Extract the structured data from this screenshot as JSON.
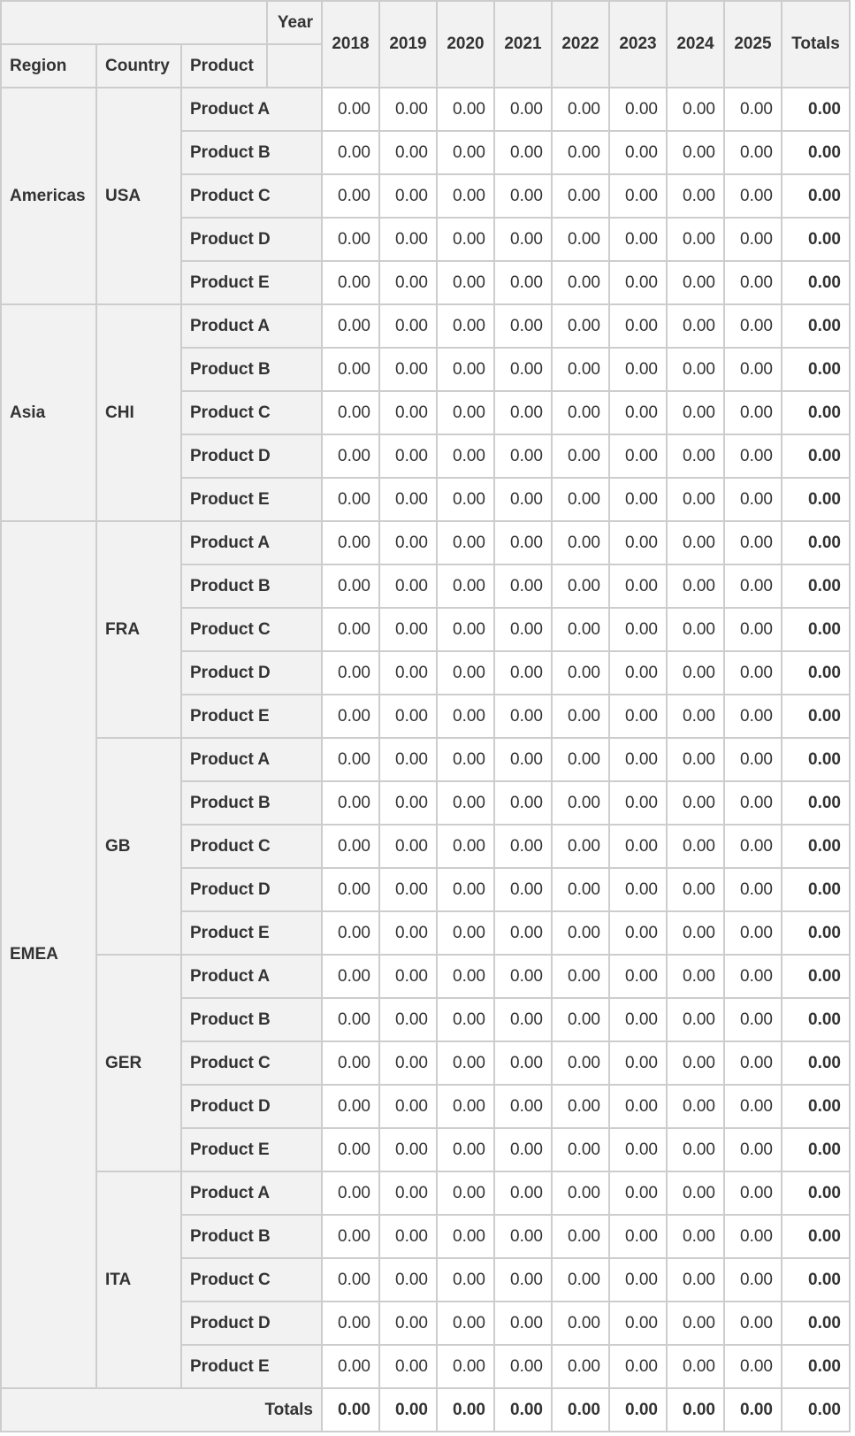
{
  "header": {
    "column_field": "Year",
    "row_fields": [
      "Region",
      "Country",
      "Product"
    ],
    "years": [
      "2018",
      "2019",
      "2020",
      "2021",
      "2022",
      "2023",
      "2024",
      "2025"
    ],
    "totals_label": "Totals"
  },
  "regions": [
    {
      "label": "Americas",
      "countries": [
        {
          "label": "USA",
          "products": [
            {
              "label": "Product A",
              "values": [
                "0.00",
                "0.00",
                "0.00",
                "0.00",
                "0.00",
                "0.00",
                "0.00",
                "0.00"
              ],
              "total": "0.00"
            },
            {
              "label": "Product B",
              "values": [
                "0.00",
                "0.00",
                "0.00",
                "0.00",
                "0.00",
                "0.00",
                "0.00",
                "0.00"
              ],
              "total": "0.00"
            },
            {
              "label": "Product C",
              "values": [
                "0.00",
                "0.00",
                "0.00",
                "0.00",
                "0.00",
                "0.00",
                "0.00",
                "0.00"
              ],
              "total": "0.00"
            },
            {
              "label": "Product D",
              "values": [
                "0.00",
                "0.00",
                "0.00",
                "0.00",
                "0.00",
                "0.00",
                "0.00",
                "0.00"
              ],
              "total": "0.00"
            },
            {
              "label": "Product E",
              "values": [
                "0.00",
                "0.00",
                "0.00",
                "0.00",
                "0.00",
                "0.00",
                "0.00",
                "0.00"
              ],
              "total": "0.00"
            }
          ]
        }
      ]
    },
    {
      "label": "Asia",
      "countries": [
        {
          "label": "CHI",
          "products": [
            {
              "label": "Product A",
              "values": [
                "0.00",
                "0.00",
                "0.00",
                "0.00",
                "0.00",
                "0.00",
                "0.00",
                "0.00"
              ],
              "total": "0.00"
            },
            {
              "label": "Product B",
              "values": [
                "0.00",
                "0.00",
                "0.00",
                "0.00",
                "0.00",
                "0.00",
                "0.00",
                "0.00"
              ],
              "total": "0.00"
            },
            {
              "label": "Product C",
              "values": [
                "0.00",
                "0.00",
                "0.00",
                "0.00",
                "0.00",
                "0.00",
                "0.00",
                "0.00"
              ],
              "total": "0.00"
            },
            {
              "label": "Product D",
              "values": [
                "0.00",
                "0.00",
                "0.00",
                "0.00",
                "0.00",
                "0.00",
                "0.00",
                "0.00"
              ],
              "total": "0.00"
            },
            {
              "label": "Product E",
              "values": [
                "0.00",
                "0.00",
                "0.00",
                "0.00",
                "0.00",
                "0.00",
                "0.00",
                "0.00"
              ],
              "total": "0.00"
            }
          ]
        }
      ]
    },
    {
      "label": "EMEA",
      "countries": [
        {
          "label": "FRA",
          "products": [
            {
              "label": "Product A",
              "values": [
                "0.00",
                "0.00",
                "0.00",
                "0.00",
                "0.00",
                "0.00",
                "0.00",
                "0.00"
              ],
              "total": "0.00"
            },
            {
              "label": "Product B",
              "values": [
                "0.00",
                "0.00",
                "0.00",
                "0.00",
                "0.00",
                "0.00",
                "0.00",
                "0.00"
              ],
              "total": "0.00"
            },
            {
              "label": "Product C",
              "values": [
                "0.00",
                "0.00",
                "0.00",
                "0.00",
                "0.00",
                "0.00",
                "0.00",
                "0.00"
              ],
              "total": "0.00"
            },
            {
              "label": "Product D",
              "values": [
                "0.00",
                "0.00",
                "0.00",
                "0.00",
                "0.00",
                "0.00",
                "0.00",
                "0.00"
              ],
              "total": "0.00"
            },
            {
              "label": "Product E",
              "values": [
                "0.00",
                "0.00",
                "0.00",
                "0.00",
                "0.00",
                "0.00",
                "0.00",
                "0.00"
              ],
              "total": "0.00"
            }
          ]
        },
        {
          "label": "GB",
          "products": [
            {
              "label": "Product A",
              "values": [
                "0.00",
                "0.00",
                "0.00",
                "0.00",
                "0.00",
                "0.00",
                "0.00",
                "0.00"
              ],
              "total": "0.00"
            },
            {
              "label": "Product B",
              "values": [
                "0.00",
                "0.00",
                "0.00",
                "0.00",
                "0.00",
                "0.00",
                "0.00",
                "0.00"
              ],
              "total": "0.00"
            },
            {
              "label": "Product C",
              "values": [
                "0.00",
                "0.00",
                "0.00",
                "0.00",
                "0.00",
                "0.00",
                "0.00",
                "0.00"
              ],
              "total": "0.00"
            },
            {
              "label": "Product D",
              "values": [
                "0.00",
                "0.00",
                "0.00",
                "0.00",
                "0.00",
                "0.00",
                "0.00",
                "0.00"
              ],
              "total": "0.00"
            },
            {
              "label": "Product E",
              "values": [
                "0.00",
                "0.00",
                "0.00",
                "0.00",
                "0.00",
                "0.00",
                "0.00",
                "0.00"
              ],
              "total": "0.00"
            }
          ]
        },
        {
          "label": "GER",
          "products": [
            {
              "label": "Product A",
              "values": [
                "0.00",
                "0.00",
                "0.00",
                "0.00",
                "0.00",
                "0.00",
                "0.00",
                "0.00"
              ],
              "total": "0.00"
            },
            {
              "label": "Product B",
              "values": [
                "0.00",
                "0.00",
                "0.00",
                "0.00",
                "0.00",
                "0.00",
                "0.00",
                "0.00"
              ],
              "total": "0.00"
            },
            {
              "label": "Product C",
              "values": [
                "0.00",
                "0.00",
                "0.00",
                "0.00",
                "0.00",
                "0.00",
                "0.00",
                "0.00"
              ],
              "total": "0.00"
            },
            {
              "label": "Product D",
              "values": [
                "0.00",
                "0.00",
                "0.00",
                "0.00",
                "0.00",
                "0.00",
                "0.00",
                "0.00"
              ],
              "total": "0.00"
            },
            {
              "label": "Product E",
              "values": [
                "0.00",
                "0.00",
                "0.00",
                "0.00",
                "0.00",
                "0.00",
                "0.00",
                "0.00"
              ],
              "total": "0.00"
            }
          ]
        },
        {
          "label": "ITA",
          "products": [
            {
              "label": "Product A",
              "values": [
                "0.00",
                "0.00",
                "0.00",
                "0.00",
                "0.00",
                "0.00",
                "0.00",
                "0.00"
              ],
              "total": "0.00"
            },
            {
              "label": "Product B",
              "values": [
                "0.00",
                "0.00",
                "0.00",
                "0.00",
                "0.00",
                "0.00",
                "0.00",
                "0.00"
              ],
              "total": "0.00"
            },
            {
              "label": "Product C",
              "values": [
                "0.00",
                "0.00",
                "0.00",
                "0.00",
                "0.00",
                "0.00",
                "0.00",
                "0.00"
              ],
              "total": "0.00"
            },
            {
              "label": "Product D",
              "values": [
                "0.00",
                "0.00",
                "0.00",
                "0.00",
                "0.00",
                "0.00",
                "0.00",
                "0.00"
              ],
              "total": "0.00"
            },
            {
              "label": "Product E",
              "values": [
                "0.00",
                "0.00",
                "0.00",
                "0.00",
                "0.00",
                "0.00",
                "0.00",
                "0.00"
              ],
              "total": "0.00"
            }
          ]
        }
      ]
    }
  ],
  "column_totals": {
    "label": "Totals",
    "values": [
      "0.00",
      "0.00",
      "0.00",
      "0.00",
      "0.00",
      "0.00",
      "0.00",
      "0.00"
    ],
    "grand_total": "0.00"
  }
}
